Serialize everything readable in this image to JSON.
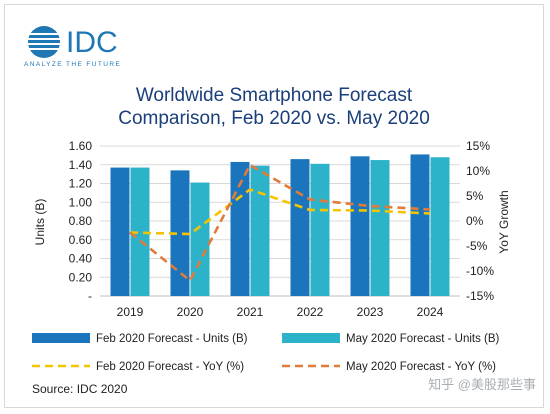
{
  "brand": {
    "name": "IDC",
    "tagline": "ANALYZE THE FUTURE",
    "color": "#1f77b4"
  },
  "source": "Source: IDC 2020",
  "watermark": "知乎 @美股那些事",
  "chart_data": {
    "type": "bar",
    "title_lines": [
      "Worldwide Smartphone Forecast",
      "Comparison, Feb 2020 vs. May 2020"
    ],
    "categories": [
      "2019",
      "2020",
      "2021",
      "2022",
      "2023",
      "2024"
    ],
    "ylabel": "Units (B)",
    "y2label": "YoY Growth",
    "ylim": [
      0,
      1.6
    ],
    "y2lim": [
      -15,
      15
    ],
    "y_ticks": [
      "1.60",
      "1.40",
      "1.20",
      "1.00",
      "0.80",
      "0.60",
      "0.40",
      "0.20",
      "-"
    ],
    "y2_ticks": [
      "15%",
      "10%",
      "5%",
      "0%",
      "-5%",
      "-10%",
      "-15%"
    ],
    "series": [
      {
        "name": "Feb 2020 Forecast - Units (B)",
        "kind": "bar",
        "color": "#1b75bc",
        "values": [
          1.37,
          1.34,
          1.43,
          1.46,
          1.49,
          1.51
        ]
      },
      {
        "name": "May 2020 Forecast - Units (B)",
        "kind": "bar",
        "color": "#2cb3c9",
        "values": [
          1.37,
          1.21,
          1.39,
          1.41,
          1.45,
          1.48
        ]
      },
      {
        "name": "Feb 2020 Forecast - YoY (%)",
        "kind": "line",
        "color": "#f5c400",
        "values": [
          -2.3,
          -2.6,
          6.3,
          2.2,
          2.1,
          1.5
        ]
      },
      {
        "name": "May 2020 Forecast - YoY (%)",
        "kind": "line",
        "color": "#e07b39",
        "values": [
          -2.3,
          -11.9,
          11.2,
          4.3,
          3.0,
          2.3
        ]
      }
    ],
    "grid": true,
    "legend_position": "bottom"
  }
}
